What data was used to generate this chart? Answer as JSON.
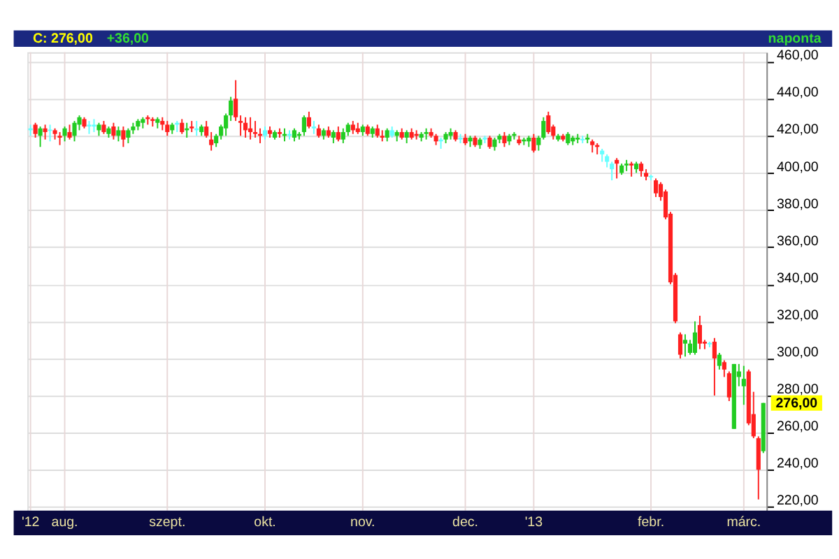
{
  "chart_data": {
    "type": "candlestick",
    "annotations": [
      "C: 276,00",
      "+36,00",
      "naponta",
      {
        "text": "276,00",
        "y": 276
      }
    ],
    "categories": [
      "'12",
      null,
      null,
      null,
      null,
      null,
      null,
      "aug.",
      null,
      null,
      null,
      null,
      null,
      null,
      null,
      null,
      null,
      null,
      null,
      null,
      null,
      null,
      null,
      null,
      null,
      null,
      null,
      null,
      "szept.",
      null,
      null,
      null,
      null,
      null,
      null,
      null,
      null,
      null,
      null,
      null,
      null,
      null,
      null,
      null,
      null,
      null,
      null,
      null,
      "okt.",
      null,
      null,
      null,
      null,
      null,
      null,
      null,
      null,
      null,
      null,
      null,
      null,
      null,
      null,
      null,
      null,
      null,
      null,
      null,
      "nov.",
      null,
      null,
      null,
      null,
      null,
      null,
      null,
      null,
      null,
      null,
      null,
      null,
      null,
      null,
      null,
      null,
      null,
      null,
      null,
      null,
      "dec.",
      null,
      null,
      null,
      null,
      null,
      null,
      null,
      null,
      null,
      null,
      null,
      null,
      null,
      "'13",
      null,
      null,
      null,
      null,
      null,
      null,
      null,
      null,
      null,
      null,
      null,
      null,
      null,
      null,
      null,
      null,
      null,
      null,
      null,
      null,
      null,
      null,
      null,
      "febr.",
      null,
      null,
      null,
      null,
      null,
      null,
      null,
      null,
      null,
      null,
      null,
      null,
      null,
      null,
      null,
      null,
      null,
      null,
      "márc.",
      null,
      null,
      null,
      null
    ],
    "ohlc": [
      [
        423,
        426,
        420,
        424
      ],
      [
        426,
        427,
        419,
        421
      ],
      [
        420,
        425,
        414,
        424
      ],
      [
        424,
        426,
        418,
        422
      ],
      [
        423,
        426,
        417,
        423
      ],
      [
        423,
        424,
        418,
        421
      ],
      [
        419,
        422,
        415,
        420
      ],
      [
        420,
        425,
        417,
        424
      ],
      [
        422,
        426,
        418,
        419
      ],
      [
        420,
        428,
        417,
        427
      ],
      [
        426,
        431,
        423,
        430
      ],
      [
        429,
        430,
        424,
        425
      ],
      [
        425,
        428,
        421,
        426
      ],
      [
        426,
        429,
        422,
        425
      ],
      [
        423,
        427,
        420,
        426
      ],
      [
        426,
        428,
        421,
        422
      ],
      [
        421,
        425,
        419,
        424
      ],
      [
        425,
        427,
        418,
        420
      ],
      [
        420,
        425,
        417,
        423
      ],
      [
        423,
        425,
        414,
        418
      ],
      [
        419,
        424,
        416,
        423
      ],
      [
        423,
        427,
        421,
        425
      ],
      [
        425,
        429,
        423,
        428
      ],
      [
        427,
        430,
        424,
        429
      ],
      [
        430,
        431,
        426,
        429
      ],
      [
        429,
        430,
        425,
        428
      ],
      [
        427,
        430,
        424,
        429
      ],
      [
        428,
        430,
        423,
        426
      ],
      [
        426,
        428,
        420,
        422
      ],
      [
        423,
        427,
        421,
        426
      ],
      [
        426,
        428,
        422,
        427
      ],
      [
        427,
        429,
        421,
        422
      ],
      [
        423,
        427,
        419,
        424
      ],
      [
        425,
        428,
        422,
        424
      ],
      [
        424,
        428,
        420,
        423
      ],
      [
        422,
        426,
        420,
        425
      ],
      [
        425,
        428,
        419,
        420
      ],
      [
        418,
        422,
        412,
        415
      ],
      [
        416,
        421,
        414,
        420
      ],
      [
        420,
        426,
        418,
        425
      ],
      [
        424,
        432,
        420,
        431
      ],
      [
        431,
        441,
        428,
        439
      ],
      [
        440,
        450,
        428,
        430
      ],
      [
        428,
        431,
        420,
        427
      ],
      [
        427,
        430,
        419,
        423
      ],
      [
        424,
        430,
        418,
        422
      ],
      [
        422,
        428,
        419,
        421
      ],
      [
        421,
        424,
        416,
        420
      ],
      [
        420,
        425,
        418,
        423
      ],
      [
        423,
        425,
        419,
        421
      ],
      [
        419,
        423,
        418,
        422
      ],
      [
        422,
        424,
        419,
        421
      ],
      [
        420,
        424,
        417,
        421
      ],
      [
        421,
        423,
        418,
        420
      ],
      [
        419,
        424,
        417,
        423
      ],
      [
        420,
        422,
        418,
        421
      ],
      [
        422,
        431,
        420,
        430
      ],
      [
        430,
        433,
        424,
        425
      ],
      [
        425,
        428,
        421,
        424
      ],
      [
        424,
        426,
        419,
        420
      ],
      [
        420,
        424,
        418,
        423
      ],
      [
        423,
        425,
        419,
        420
      ],
      [
        419,
        423,
        416,
        422
      ],
      [
        422,
        425,
        417,
        418
      ],
      [
        418,
        424,
        416,
        422
      ],
      [
        422,
        427,
        420,
        426
      ],
      [
        426,
        428,
        421,
        423
      ],
      [
        424,
        427,
        421,
        422
      ],
      [
        422,
        426,
        420,
        425
      ],
      [
        425,
        426,
        420,
        421
      ],
      [
        421,
        425,
        419,
        424
      ],
      [
        424,
        426,
        419,
        420
      ],
      [
        420,
        423,
        417,
        419
      ],
      [
        419,
        424,
        417,
        423
      ],
      [
        423,
        425,
        419,
        420
      ],
      [
        420,
        423,
        417,
        422
      ],
      [
        422,
        424,
        418,
        419
      ],
      [
        419,
        423,
        416,
        422
      ],
      [
        422,
        424,
        418,
        419
      ],
      [
        421,
        423,
        418,
        420
      ],
      [
        419,
        422,
        417,
        421
      ],
      [
        421,
        424,
        418,
        422
      ],
      [
        422,
        424,
        419,
        420
      ],
      [
        420,
        421,
        415,
        417
      ],
      [
        417,
        419,
        413,
        418
      ],
      [
        418,
        422,
        416,
        421
      ],
      [
        420,
        424,
        418,
        422
      ],
      [
        422,
        423,
        417,
        418
      ],
      [
        418,
        421,
        416,
        419
      ],
      [
        419,
        421,
        415,
        416
      ],
      [
        417,
        420,
        414,
        419
      ],
      [
        419,
        420,
        414,
        415
      ],
      [
        415,
        419,
        413,
        418
      ],
      [
        418,
        420,
        416,
        419
      ],
      [
        419,
        420,
        413,
        414
      ],
      [
        414,
        419,
        412,
        418
      ],
      [
        418,
        421,
        416,
        420
      ],
      [
        420,
        422,
        414,
        416
      ],
      [
        417,
        421,
        415,
        420
      ],
      [
        420,
        422,
        418,
        421
      ],
      [
        418,
        420,
        415,
        416
      ],
      [
        417,
        419,
        415,
        418
      ],
      [
        417,
        420,
        414,
        419
      ],
      [
        419,
        421,
        411,
        412
      ],
      [
        415,
        420,
        412,
        419
      ],
      [
        419,
        430,
        418,
        428
      ],
      [
        431,
        433,
        421,
        422
      ],
      [
        425,
        426,
        418,
        420
      ],
      [
        418,
        421,
        417,
        420
      ],
      [
        420,
        421,
        417,
        418
      ],
      [
        416,
        422,
        415,
        421
      ],
      [
        417,
        420,
        415,
        419
      ],
      [
        418,
        421,
        416,
        419
      ],
      [
        418,
        420,
        416,
        418
      ],
      [
        418,
        421,
        416,
        419
      ],
      [
        417,
        418,
        411,
        415
      ],
      [
        415,
        416,
        410,
        414
      ],
      [
        412,
        413,
        406,
        410
      ],
      [
        409,
        410,
        403,
        406
      ],
      [
        405,
        406,
        396,
        402
      ],
      [
        407,
        408,
        397,
        405
      ],
      [
        400,
        405,
        399,
        404
      ],
      [
        404,
        407,
        401,
        405
      ],
      [
        405,
        406,
        398,
        404
      ],
      [
        402,
        406,
        400,
        405
      ],
      [
        405,
        406,
        398,
        401
      ],
      [
        400,
        402,
        396,
        398
      ],
      [
        398,
        399,
        396,
        398
      ],
      [
        396,
        397,
        387,
        389
      ],
      [
        394,
        395,
        385,
        387
      ],
      [
        390,
        391,
        375,
        376
      ],
      [
        378,
        379,
        340,
        341
      ],
      [
        345,
        346,
        319,
        320
      ],
      [
        313,
        314,
        300,
        302
      ],
      [
        308,
        313,
        301,
        310
      ],
      [
        303,
        310,
        302,
        308
      ],
      [
        303,
        320,
        302,
        314
      ],
      [
        318,
        323,
        305,
        308
      ],
      [
        309,
        310,
        305,
        308
      ],
      [
        308,
        309,
        306,
        308
      ],
      [
        309,
        311,
        280,
        300
      ],
      [
        296,
        303,
        294,
        302
      ],
      [
        298,
        299,
        290,
        294
      ],
      [
        292,
        293,
        277,
        279
      ],
      [
        262,
        297,
        262,
        297
      ],
      [
        290,
        297,
        285,
        293
      ],
      [
        285,
        296,
        275,
        289
      ],
      [
        293,
        294,
        264,
        265
      ],
      [
        270,
        282,
        257,
        258
      ],
      [
        257,
        258,
        224,
        240
      ],
      [
        250,
        276,
        249,
        276
      ]
    ],
    "colors": [
      "#66ffff",
      "#ff2020",
      "#22cc22",
      "#ff2020",
      "#66ffff",
      "#ff2020",
      "#ff2020",
      "#22cc22",
      "#ff2020",
      "#22cc22",
      "#22cc22",
      "#ff2020",
      "#66ffff",
      "#66ffff",
      "#22cc22",
      "#ff2020",
      "#22cc22",
      "#ff2020",
      "#22cc22",
      "#ff2020",
      "#22cc22",
      "#22cc22",
      "#22cc22",
      "#22cc22",
      "#ff2020",
      "#ff2020",
      "#22cc22",
      "#ff2020",
      "#ff2020",
      "#22cc22",
      "#66ffff",
      "#ff2020",
      "#22cc22",
      "#ff2020",
      "#66ffff",
      "#22cc22",
      "#ff2020",
      "#ff2020",
      "#22cc22",
      "#22cc22",
      "#22cc22",
      "#22cc22",
      "#ff2020",
      "#ff2020",
      "#ff2020",
      "#ff2020",
      "#ff2020",
      "#ff2020",
      "#66ffff",
      "#ff2020",
      "#22cc22",
      "#ff2020",
      "#22cc22",
      "#66ffff",
      "#22cc22",
      "#22cc22",
      "#22cc22",
      "#ff2020",
      "#66ffff",
      "#ff2020",
      "#22cc22",
      "#ff2020",
      "#22cc22",
      "#ff2020",
      "#22cc22",
      "#22cc22",
      "#ff2020",
      "#ff2020",
      "#22cc22",
      "#ff2020",
      "#22cc22",
      "#ff2020",
      "#ff2020",
      "#22cc22",
      "#66ffff",
      "#22cc22",
      "#ff2020",
      "#22cc22",
      "#ff2020",
      "#ff2020",
      "#22cc22",
      "#22cc22",
      "#ff2020",
      "#ff2020",
      "#66ffff",
      "#22cc22",
      "#22cc22",
      "#ff2020",
      "#66ffff",
      "#ff2020",
      "#22cc22",
      "#ff2020",
      "#22cc22",
      "#66ffff",
      "#ff2020",
      "#22cc22",
      "#22cc22",
      "#ff2020",
      "#22cc22",
      "#22cc22",
      "#ff2020",
      "#22cc22",
      "#22cc22",
      "#ff2020",
      "#22cc22",
      "#22cc22",
      "#ff2020",
      "#ff2020",
      "#22cc22",
      "#ff2020",
      "#22cc22",
      "#22cc22",
      "#22cc22",
      "#66ffff",
      "#22cc22",
      "#ff2020",
      "#ff2020",
      "#66ffff",
      "#66ffff",
      "#66ffff",
      "#ff2020",
      "#22cc22",
      "#22cc22",
      "#ff2020",
      "#22cc22",
      "#ff2020",
      "#ff2020",
      "#66ffff",
      "#ff2020",
      "#ff2020",
      "#ff2020",
      "#ff2020",
      "#ff2020",
      "#ff2020",
      "#22cc22",
      "#22cc22",
      "#22cc22",
      "#ff2020",
      "#ff2020",
      "#66ffff",
      "#ff2020",
      "#22cc22",
      "#ff2020",
      "#ff2020",
      "#22cc22",
      "#22cc22",
      "#22cc22",
      "#ff2020",
      "#ff2020",
      "#ff2020",
      "#22cc22"
    ],
    "ylim": [
      218,
      465
    ],
    "yticks": [
      {
        "value": 220,
        "label": "220,00"
      },
      {
        "value": 240,
        "label": "240,00"
      },
      {
        "value": 260,
        "label": "260,00"
      },
      {
        "value": 280,
        "label": "280,00"
      },
      {
        "value": 300,
        "label": "300,00"
      },
      {
        "value": 320,
        "label": "320,00"
      },
      {
        "value": 340,
        "label": "340,00"
      },
      {
        "value": 360,
        "label": "360,00"
      },
      {
        "value": 380,
        "label": "380,00"
      },
      {
        "value": 400,
        "label": "400,00"
      },
      {
        "value": 420,
        "label": "420,00"
      },
      {
        "value": 440,
        "label": "440,00"
      },
      {
        "value": 460,
        "label": "460,00"
      }
    ],
    "grid": true
  }
}
